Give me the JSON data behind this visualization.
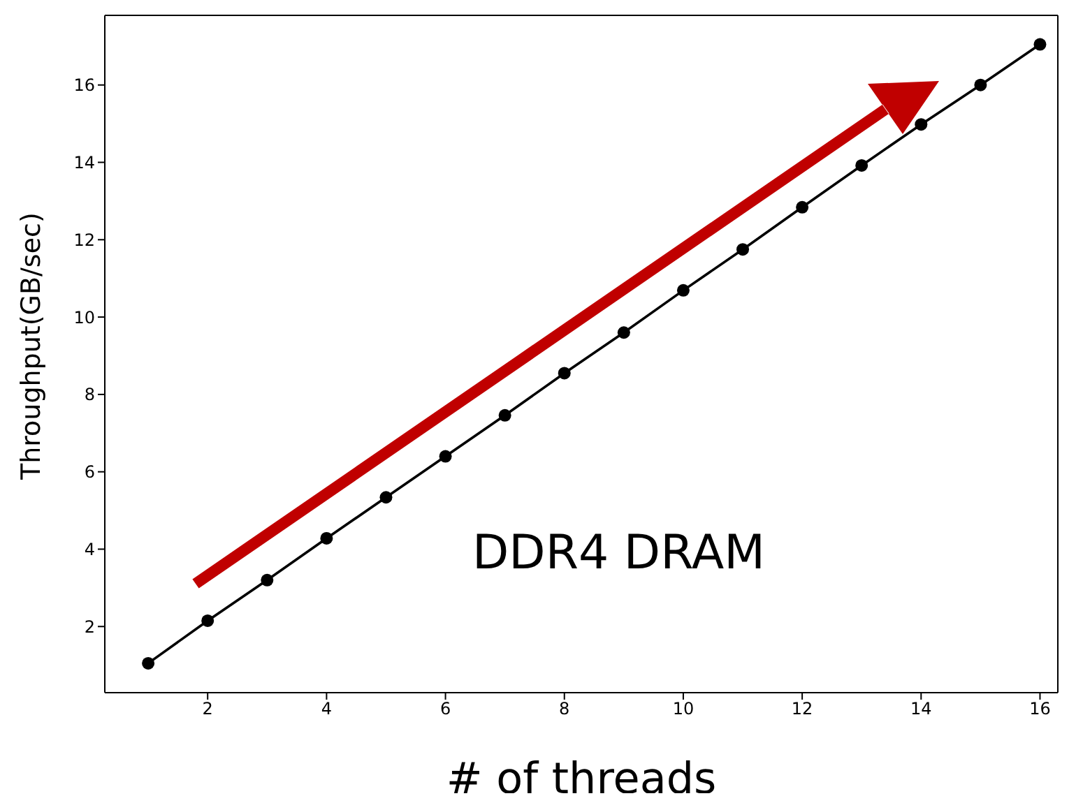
{
  "chart_data": {
    "type": "line",
    "xlabel": "# of threads",
    "ylabel": "Throughput(GB/sec)",
    "annotations": [
      "DDR4 DRAM"
    ],
    "x": [
      1,
      2,
      3,
      4,
      5,
      6,
      7,
      8,
      9,
      10,
      11,
      12,
      13,
      14,
      15,
      16
    ],
    "series": [
      {
        "color": "#000000",
        "values": [
          1.05,
          2.15,
          3.2,
          4.28,
          5.34,
          6.4,
          7.46,
          8.55,
          9.6,
          10.69,
          11.75,
          12.84,
          13.92,
          14.98,
          16.0,
          17.05
        ]
      }
    ],
    "xlim": [
      0.27,
      16.3
    ],
    "ylim": [
      0.29,
      17.8
    ],
    "xticks": [
      2,
      4,
      6,
      8,
      10,
      12,
      14,
      16
    ],
    "yticks": [
      2,
      4,
      6,
      8,
      10,
      12,
      14,
      16
    ],
    "marker": "circle",
    "line_style": "solid",
    "grid": false,
    "legend": false
  }
}
